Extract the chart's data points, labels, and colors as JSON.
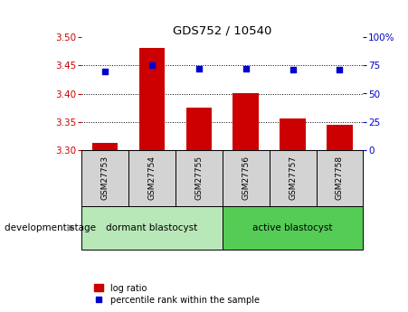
{
  "title": "GDS752 / 10540",
  "categories": [
    "GSM27753",
    "GSM27754",
    "GSM27755",
    "GSM27756",
    "GSM27757",
    "GSM27758"
  ],
  "log_ratio": [
    3.312,
    3.482,
    3.375,
    3.4,
    3.355,
    3.344
  ],
  "percentile_rank": [
    70,
    75,
    72,
    72,
    71,
    71
  ],
  "ylim_left": [
    3.3,
    3.5
  ],
  "ylim_right": [
    0,
    100
  ],
  "yticks_left": [
    3.3,
    3.35,
    3.4,
    3.45,
    3.5
  ],
  "yticks_right": [
    0,
    25,
    50,
    75,
    100
  ],
  "bar_color": "#cc0000",
  "dot_color": "#0000cc",
  "group1_label": "dormant blastocyst",
  "group2_label": "active blastocyst",
  "group1_color": "#b8e8b8",
  "group2_color": "#55cc55",
  "legend_bar_label": "log ratio",
  "legend_dot_label": "percentile rank within the sample",
  "factor_label": "development stage",
  "left_tick_color": "#cc0000",
  "right_tick_color": "#0000cc",
  "tick_bg_color": "#d3d3d3",
  "bar_width": 0.55
}
